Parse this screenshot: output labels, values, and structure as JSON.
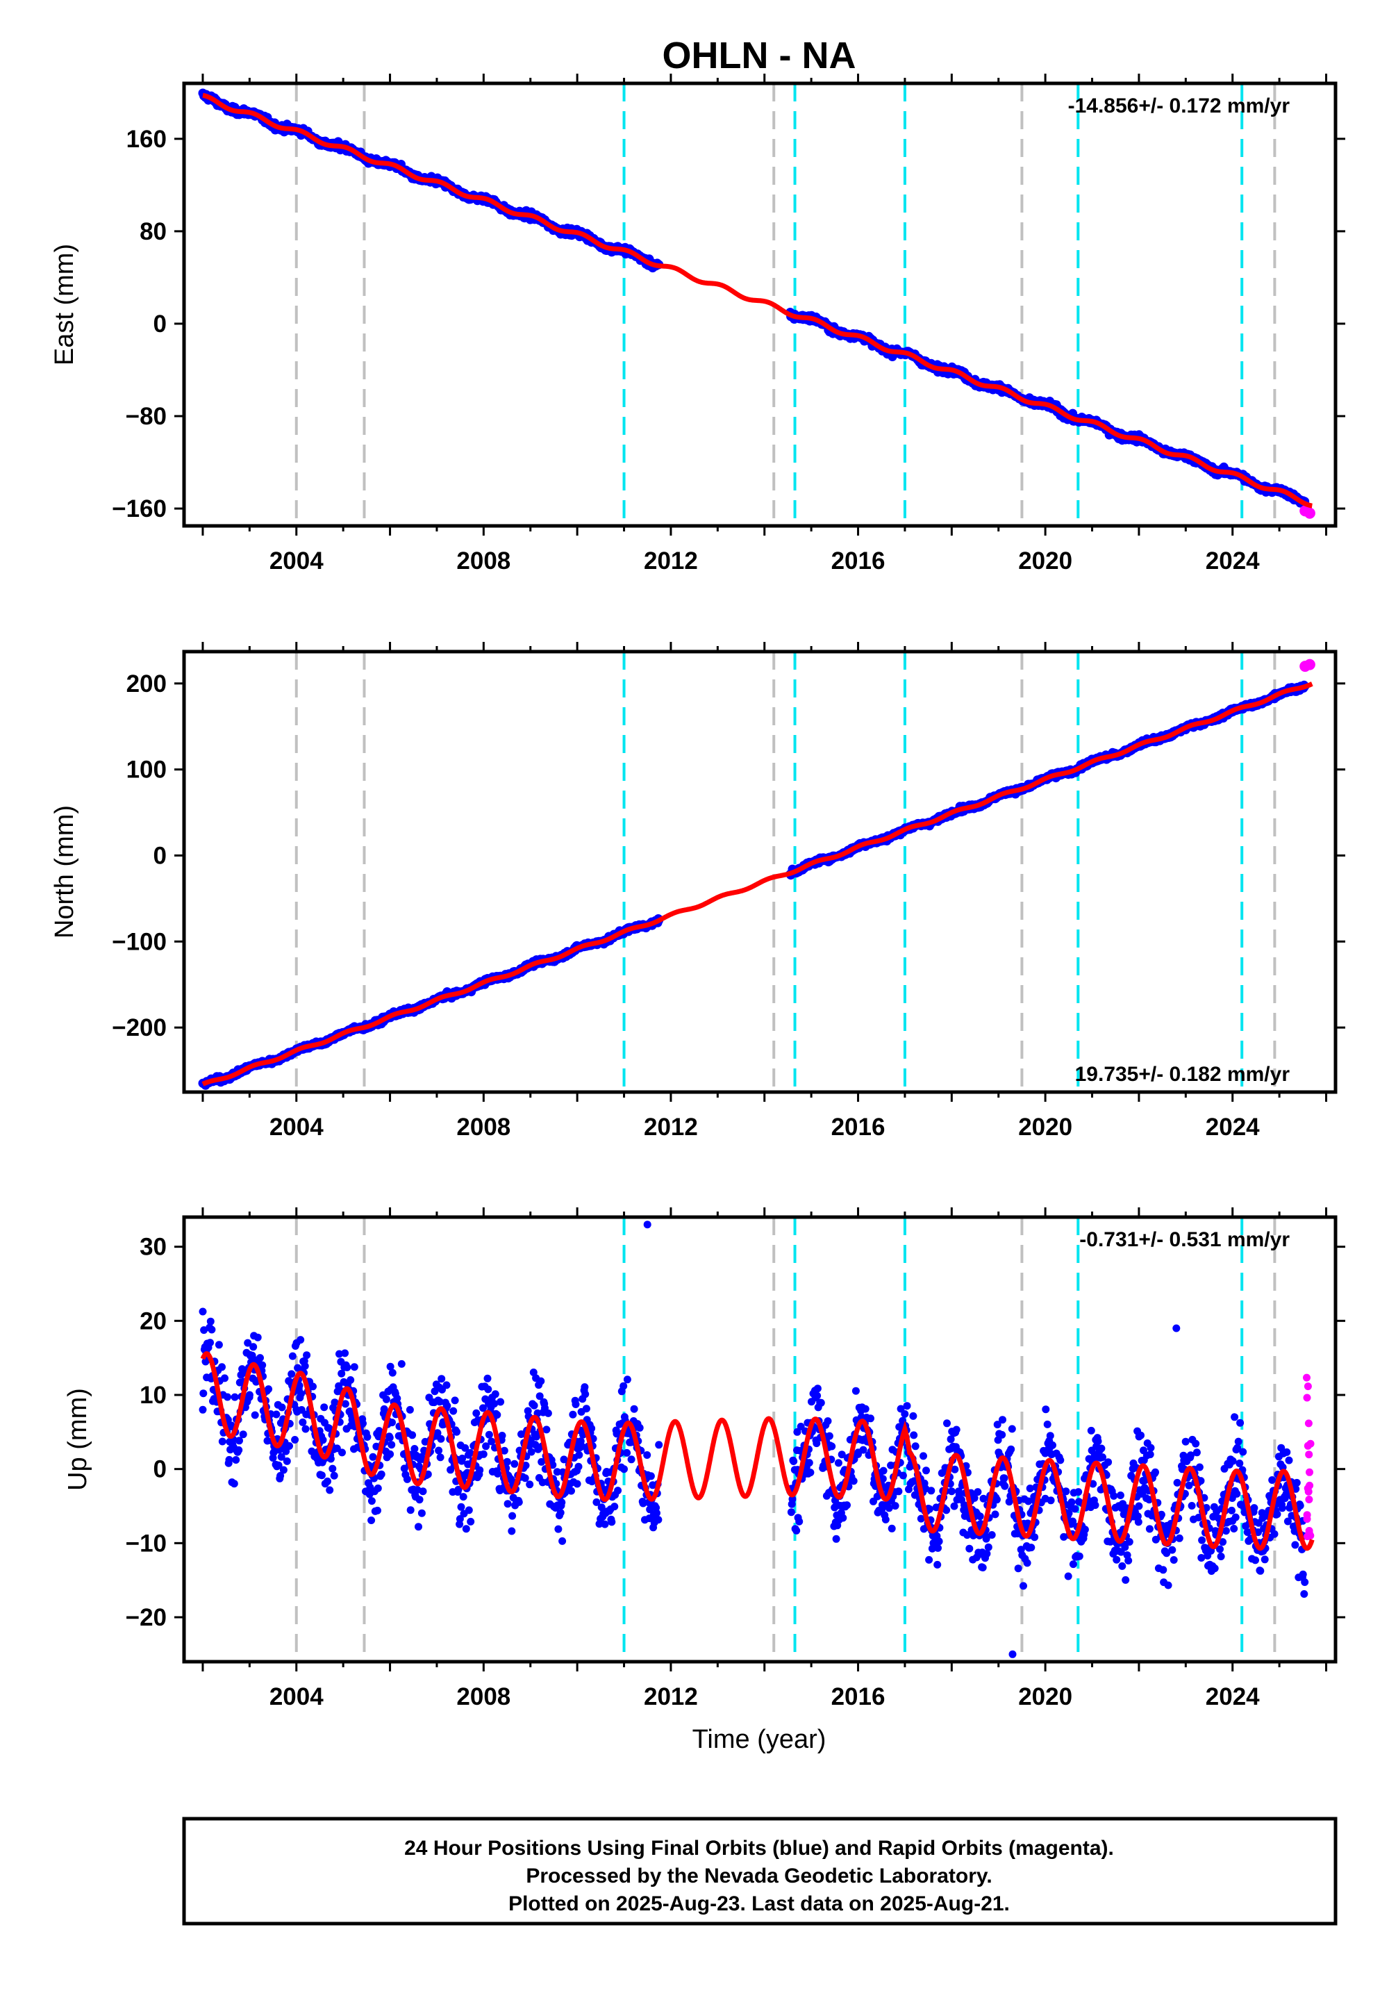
{
  "chart_data": {
    "title": "OHLN - NA",
    "type": "scatter",
    "xlabel": "Time (year)",
    "x_ticks": [
      2004,
      2008,
      2012,
      2016,
      2020,
      2024
    ],
    "xlim": [
      2001.6,
      2026.2
    ],
    "offset_lines": {
      "equipment_change_gray": [
        2004.0,
        2005.45,
        2014.2,
        2019.5,
        2024.9
      ],
      "earthquake_cyan": [
        2011.0,
        2014.65,
        2017.0,
        2020.7,
        2024.2
      ]
    },
    "data_gap": [
      2011.75,
      2014.55
    ],
    "legend": "none",
    "grid": false,
    "panels": [
      {
        "component": "east",
        "ylabel": "East (mm)",
        "ylim": [
          -175,
          208
        ],
        "y_ticks": [
          160,
          80,
          0,
          -80,
          -160
        ],
        "rate_text": "-14.856+/- 0.172 mm/yr",
        "rate_position": "top-right",
        "series": [
          {
            "name": "Final Orbits",
            "color": "#0000ff",
            "x": [
              2002.0,
              2004.0,
              2006.0,
              2008.0,
              2010.0,
              2011.7,
              2014.7,
              2016.0,
              2018.0,
              2020.0,
              2022.0,
              2024.0,
              2025.5
            ],
            "y": [
              198,
              169,
              140,
              109,
              80,
              55,
              12,
              -5,
              -35,
              -60,
              -93,
              -125,
              -158
            ]
          },
          {
            "name": "Rapid Orbits",
            "color": "#ff00ff",
            "x": [
              2025.55,
              2025.65
            ],
            "y": [
              -162,
              -164
            ]
          }
        ],
        "model": {
          "color": "#ff0000",
          "rate": -14.856,
          "intercept_2002": 196,
          "seasonal_amp": 2.0
        }
      },
      {
        "component": "north",
        "ylabel": "North (mm)",
        "ylim": [
          -275,
          237
        ],
        "y_ticks": [
          200,
          100,
          0,
          -100,
          -200
        ],
        "rate_text": "19.735+/- 0.182 mm/yr",
        "rate_position": "bottom-right",
        "series": [
          {
            "name": "Final Orbits",
            "color": "#0000ff",
            "x": [
              2002.0,
              2004.0,
              2006.0,
              2008.0,
              2010.0,
              2011.7,
              2014.7,
              2016.0,
              2018.0,
              2020.0,
              2022.0,
              2024.0,
              2025.5
            ],
            "y": [
              -265,
              -225,
              -185,
              -148,
              -110,
              -75,
              -15,
              10,
              50,
              90,
              130,
              170,
              215
            ]
          },
          {
            "name": "Rapid Orbits",
            "color": "#ff00ff",
            "x": [
              2025.55,
              2025.65
            ],
            "y": [
              220,
              222
            ]
          }
        ],
        "model": {
          "color": "#ff0000",
          "rate": 19.735,
          "intercept_2002": -267,
          "seasonal_amp": 1.5
        }
      },
      {
        "component": "up",
        "ylabel": "Up (mm)",
        "ylim": [
          -26,
          34
        ],
        "y_ticks": [
          30,
          20,
          10,
          0,
          -10,
          -20
        ],
        "rate_text": "-0.731+/- 0.531 mm/yr",
        "rate_position": "top-right",
        "series": [
          {
            "name": "Final Orbits",
            "color": "#0000ff",
            "x": [
              2002.0,
              2003.0,
              2004.0,
              2006.0,
              2008.0,
              2010.0,
              2011.0,
              2011.5,
              2014.7,
              2016.0,
              2018.0,
              2019.3,
              2020.0,
              2022.0,
              2022.8,
              2024.0,
              2025.5
            ],
            "y": [
              8,
              10,
              8,
              2,
              2,
              -2,
              0,
              33,
              5,
              2,
              -3,
              -25,
              -4,
              -5,
              19,
              -7,
              -7
            ]
          },
          {
            "name": "Rapid Orbits",
            "color": "#ff00ff",
            "x": [
              2025.6,
              2025.62,
              2025.65
            ],
            "y": [
              13,
              6,
              -10
            ]
          }
        ],
        "model": {
          "color": "#ff0000",
          "seasonal_amp": 5.2,
          "baseline": [
            [
              2002.0,
              10.5
            ],
            [
              2003.0,
              9.0
            ],
            [
              2004.3,
              7.5
            ],
            [
              2006.0,
              3.5
            ],
            [
              2008.0,
              2.5
            ],
            [
              2010.0,
              1.2
            ],
            [
              2011.0,
              1.0
            ],
            [
              2014.6,
              1.7
            ],
            [
              2017.0,
              1.0
            ],
            [
              2017.1,
              -3.0
            ],
            [
              2020.0,
              -4.0
            ],
            [
              2024.2,
              -5.5
            ],
            [
              2025.7,
              -5.5
            ]
          ]
        }
      }
    ],
    "footer": {
      "lines": [
        "24 Hour Positions Using Final Orbits (blue) and Rapid Orbits (magenta).",
        "Processed by the Nevada Geodetic Laboratory.",
        "Plotted on 2025-Aug-23. Last data on 2025-Aug-21."
      ]
    }
  }
}
